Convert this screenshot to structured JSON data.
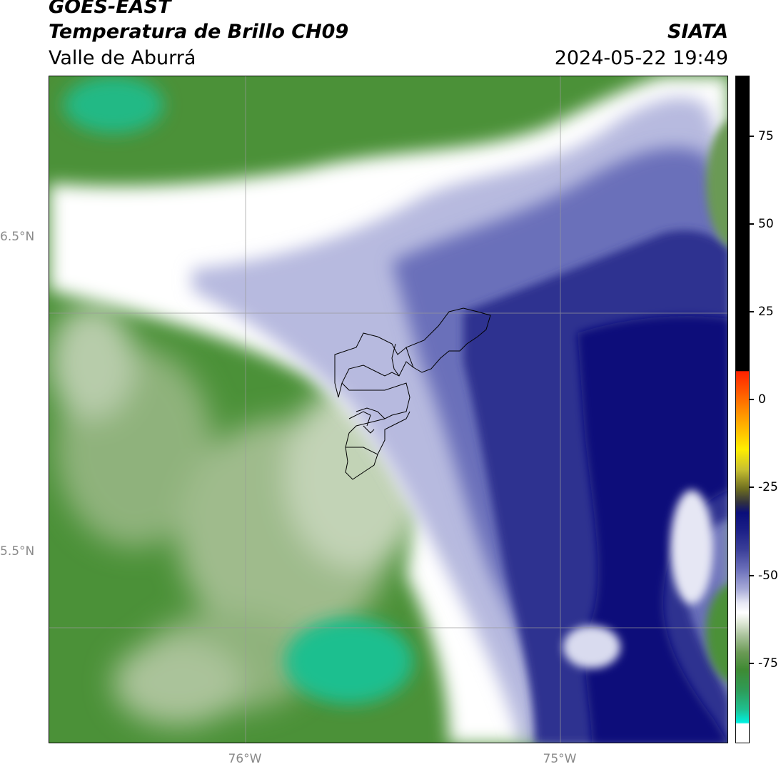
{
  "header": {
    "satellite": "GOES-EAST",
    "product": "Temperatura de Brillo CH09",
    "region": "Valle de Aburrá",
    "agency": "SIATA",
    "datetime": "2024-05-22 19:49"
  },
  "map": {
    "lat_labels": [
      "6.5°N",
      "5.5°N"
    ],
    "lon_labels": [
      "76°W",
      "75°W"
    ],
    "palette": {
      "dark_navy": "#0a0e7a",
      "navy": "#2b2f8c",
      "indigo": "#4a4fa3",
      "lavender": "#8f93c9",
      "pale_lavender": "#c9cbe6",
      "white": "#ffffff",
      "pale_green": "#cfdcc4",
      "light_green": "#9fbb8c",
      "green": "#6a9a55",
      "dark_green": "#3f8a33",
      "teal": "#1fbf8f"
    }
  },
  "colorbar": {
    "labels": [
      "75",
      "50",
      "25",
      "0",
      "-25",
      "-50",
      "-75"
    ],
    "colors": {
      "black": "#000000",
      "red": "#ff2200",
      "orange": "#ff8800",
      "yellow": "#ffee00",
      "olive": "#6b6b20",
      "navy": "#0a0e7a",
      "white": "#ffffff",
      "green": "#3f8a33",
      "cyan": "#00f0e0"
    }
  }
}
